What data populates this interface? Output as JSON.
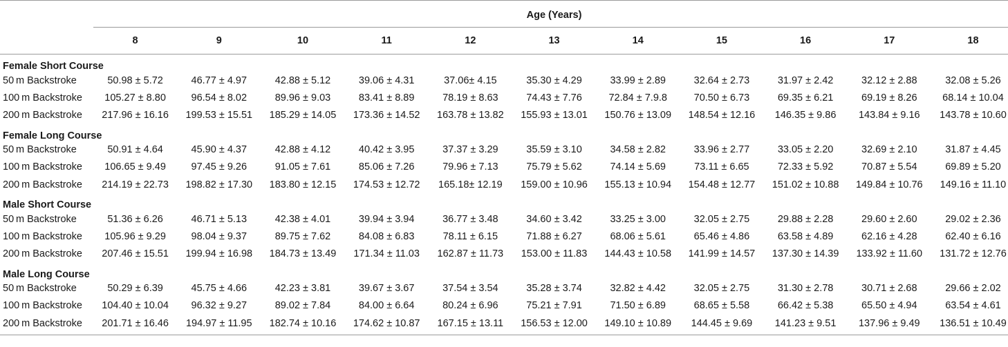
{
  "header": {
    "group_label": "Age (Years)",
    "ages": [
      "8",
      "9",
      "10",
      "11",
      "12",
      "13",
      "14",
      "15",
      "16",
      "17",
      "18"
    ]
  },
  "sections": [
    {
      "title": "Female Short Course",
      "rows": [
        {
          "label": "50 m Backstroke",
          "values": [
            "50.98 ± 5.72",
            "46.77 ± 4.97",
            "42.88 ± 5.12",
            "39.06 ± 4.31",
            "37.06± 4.15",
            "35.30 ± 4.29",
            "33.99 ± 2.89",
            "32.64 ± 2.73",
            "31.97 ± 2.42",
            "32.12 ± 2.88",
            "32.08 ± 5.26"
          ]
        },
        {
          "label": "100 m Backstroke",
          "values": [
            "105.27 ± 8.80",
            "96.54 ± 8.02",
            "89.96 ± 9.03",
            "83.41 ± 8.89",
            "78.19 ± 8.63",
            "74.43 ± 7.76",
            "72.84 ± 7.9.8",
            "70.50 ± 6.73",
            "69.35 ± 6.21",
            "69.19 ± 8.26",
            "68.14 ± 10.04"
          ]
        },
        {
          "label": "200 m Backstroke",
          "values": [
            "217.96 ± 16.16",
            "199.53 ± 15.51",
            "185.29 ± 14.05",
            "173.36 ± 14.52",
            "163.78 ± 13.82",
            "155.93 ± 13.01",
            "150.76 ± 13.09",
            "148.54 ± 12.16",
            "146.35 ± 9.86",
            "143.84 ± 9.16",
            "143.78 ± 10.60"
          ]
        }
      ]
    },
    {
      "title": "Female Long Course",
      "rows": [
        {
          "label": "50 m Backstroke",
          "values": [
            "50.91 ± 4.64",
            "45.90 ± 4.37",
            "42.88 ± 4.12",
            "40.42 ± 3.95",
            "37.37 ± 3.29",
            "35.59 ± 3.10",
            "34.58 ± 2.82",
            "33.96 ± 2.77",
            "33.05 ± 2.20",
            "32.69 ± 2.10",
            "31.87 ± 4.45"
          ]
        },
        {
          "label": "100 m Backstroke",
          "values": [
            "106.65 ± 9.49",
            "97.45 ± 9.26",
            "91.05 ± 7.61",
            "85.06 ± 7.26",
            "79.96 ± 7.13",
            "75.79 ± 5.62",
            "74.14 ± 5.69",
            "73.11 ± 6.65",
            "72.33 ± 5.92",
            "70.87 ± 5.54",
            "69.89 ± 5.20"
          ]
        },
        {
          "label": "200 m Backstroke",
          "values": [
            "214.19 ± 22.73",
            "198.82 ± 17.30",
            "183.80 ± 12.15",
            "174.53 ± 12.72",
            "165.18± 12.19",
            "159.00 ± 10.96",
            "155.13 ± 10.94",
            "154.48 ± 12.77",
            "151.02 ± 10.88",
            "149.84 ± 10.76",
            "149.16 ± 11.10"
          ]
        }
      ]
    },
    {
      "title": "Male Short Course",
      "rows": [
        {
          "label": "50 m Backstroke",
          "values": [
            "51.36 ± 6.26",
            "46.71 ± 5.13",
            "42.38 ± 4.01",
            "39.94 ± 3.94",
            "36.77 ± 3.48",
            "34.60 ± 3.42",
            "33.25 ± 3.00",
            "32.05 ± 2.75",
            "29.88 ± 2.28",
            "29.60 ± 2.60",
            "29.02 ± 2.36"
          ]
        },
        {
          "label": "100 m Backstroke",
          "values": [
            "105.96 ± 9.29",
            "98.04 ± 9.37",
            "89.75 ± 7.62",
            "84.08 ± 6.83",
            "78.11 ± 6.15",
            "71.88 ± 6.27",
            "68.06 ± 5.61",
            "65.46 ± 4.86",
            "63.58 ± 4.89",
            "62.16 ± 4.28",
            "62.40 ± 6.16"
          ]
        },
        {
          "label": "200 m Backstroke",
          "values": [
            "207.46 ± 15.51",
            "199.94 ± 16.98",
            "184.73 ± 13.49",
            "171.34 ± 11.03",
            "162.87 ± 11.73",
            "153.00 ± 11.83",
            "144.43 ± 10.58",
            "141.99 ± 14.57",
            "137.30 ± 14.39",
            "133.92 ± 11.60",
            "131.72 ± 12.76"
          ]
        }
      ]
    },
    {
      "title": "Male Long Course",
      "rows": [
        {
          "label": "50 m Backstroke",
          "values": [
            "50.29 ± 6.39",
            "45.75 ± 4.66",
            "42.23 ± 3.81",
            "39.67 ± 3.67",
            "37.54 ± 3.54",
            "35.28 ± 3.74",
            "32.82 ± 4.42",
            "32.05 ± 2.75",
            "31.30 ± 2.78",
            "30.71 ± 2.68",
            "29.66 ± 2.02"
          ]
        },
        {
          "label": "100 m Backstroke",
          "values": [
            "104.40 ± 10.04",
            "96.32 ± 9.27",
            "89.02 ± 7.84",
            "84.00 ± 6.64",
            "80.24 ± 6.96",
            "75.21 ± 7.91",
            "71.50 ± 6.89",
            "68.65 ± 5.58",
            "66.42 ± 5.38",
            "65.50 ± 4.94",
            "63.54 ± 4.61"
          ]
        },
        {
          "label": "200 m Backstroke",
          "values": [
            "201.71 ± 16.46",
            "194.97 ± 11.95",
            "182.74 ± 10.16",
            "174.62 ± 10.87",
            "167.15 ± 13.11",
            "156.53 ± 12.00",
            "149.10 ± 10.89",
            "144.45 ± 9.69",
            "141.23 ± 9.51",
            "137.96 ± 9.49",
            "136.51 ± 10.49"
          ]
        }
      ]
    }
  ]
}
